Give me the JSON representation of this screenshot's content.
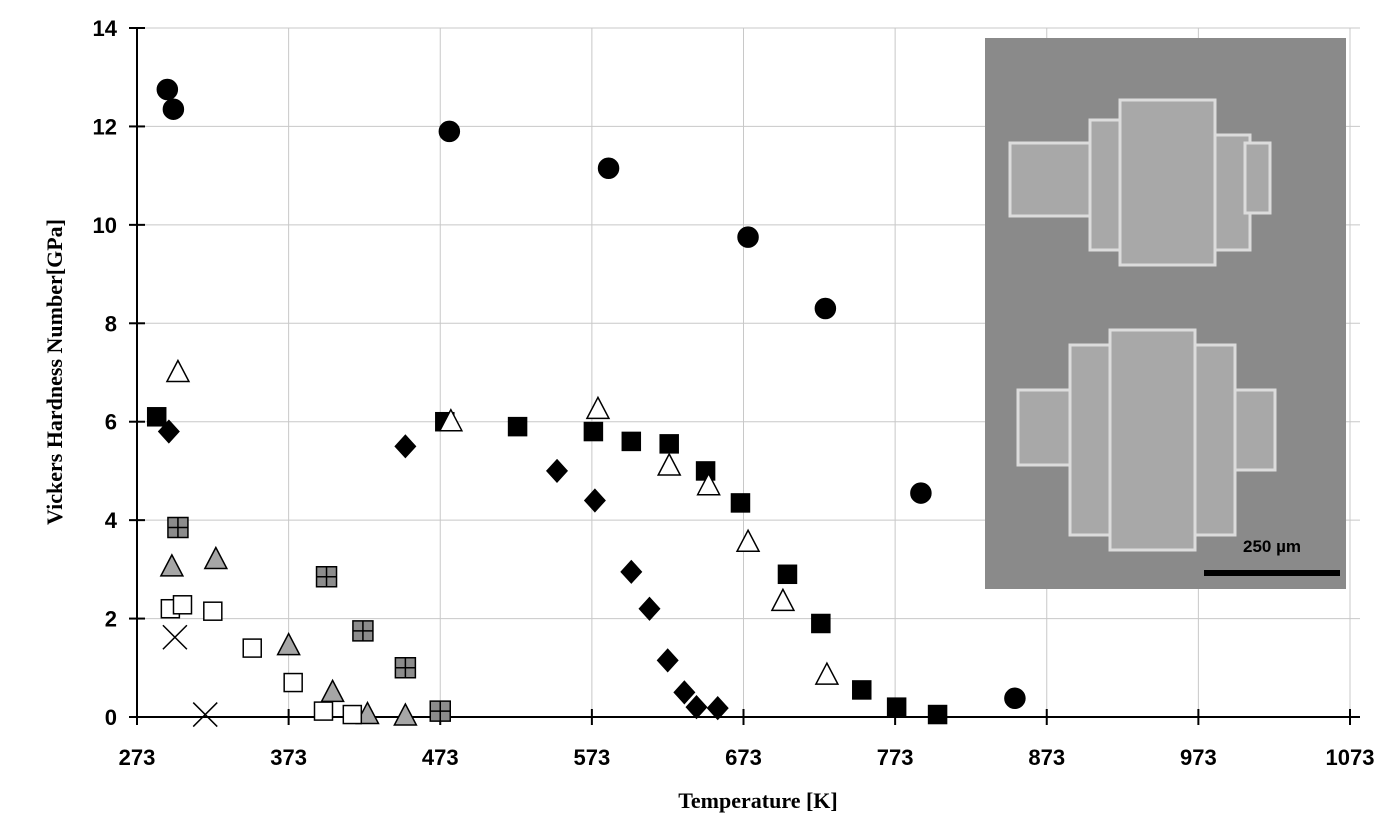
{
  "chart_data": {
    "type": "scatter",
    "x_label": "Temperature [K]",
    "y_label": "Vickers Hardness Number[GPa]",
    "inset_scale_label": "250 µm",
    "xlim": [
      273,
      1073
    ],
    "xticks": [
      273,
      373,
      473,
      573,
      673,
      773,
      873,
      973,
      1073
    ],
    "ylim": [
      0,
      14
    ],
    "yticks": [
      0,
      2,
      4,
      6,
      8,
      10,
      12,
      14
    ],
    "grid": true,
    "series": [
      {
        "marker": "circle",
        "color": "#000000",
        "edge": "#000000",
        "x": [
          293,
          297,
          479,
          584,
          676,
          727,
          790,
          852
        ],
        "values": [
          12.75,
          12.35,
          11.9,
          11.15,
          9.75,
          8.3,
          4.55,
          0.38
        ]
      },
      {
        "marker": "square",
        "color": "#000000",
        "edge": "#000000",
        "x": [
          286,
          476,
          524,
          574,
          599,
          624,
          648,
          671,
          702,
          724,
          751,
          774,
          801
        ],
        "values": [
          6.1,
          6.0,
          5.9,
          5.8,
          5.6,
          5.55,
          5.0,
          4.35,
          2.9,
          1.9,
          0.55,
          0.2,
          0.05
        ]
      },
      {
        "marker": "triangle",
        "color": "#ffffff",
        "edge": "#000000",
        "x": [
          300,
          480,
          577,
          624,
          650,
          676,
          699,
          728
        ],
        "values": [
          7.0,
          6.0,
          6.25,
          5.1,
          4.7,
          3.55,
          2.35,
          0.85
        ]
      },
      {
        "marker": "diamond",
        "color": "#000000",
        "edge": "#000000",
        "x": [
          294,
          450,
          550,
          575,
          599,
          611,
          623,
          634,
          642,
          656
        ],
        "values": [
          5.8,
          5.5,
          5.0,
          4.4,
          2.95,
          2.2,
          1.15,
          0.5,
          0.2,
          0.18
        ]
      },
      {
        "marker": "square-plus",
        "color": "#8c8c8c",
        "edge": "#000000",
        "x": [
          300,
          398,
          422,
          450,
          473
        ],
        "values": [
          3.85,
          2.85,
          1.75,
          1.0,
          0.12
        ]
      },
      {
        "marker": "triangle",
        "color": "#a6a6a6",
        "edge": "#000000",
        "x": [
          296,
          325,
          373,
          402,
          425,
          450
        ],
        "values": [
          3.05,
          3.2,
          1.45,
          0.5,
          0.05,
          0.02
        ]
      },
      {
        "marker": "square",
        "color": "#ffffff",
        "edge": "#000000",
        "x": [
          295,
          303,
          323,
          349,
          376,
          396,
          415
        ],
        "values": [
          2.2,
          2.28,
          2.15,
          1.4,
          0.7,
          0.12,
          0.05
        ]
      },
      {
        "marker": "x",
        "color": "#000000",
        "edge": "#000000",
        "x": [
          298,
          318
        ],
        "values": [
          1.62,
          0.05
        ]
      }
    ]
  }
}
